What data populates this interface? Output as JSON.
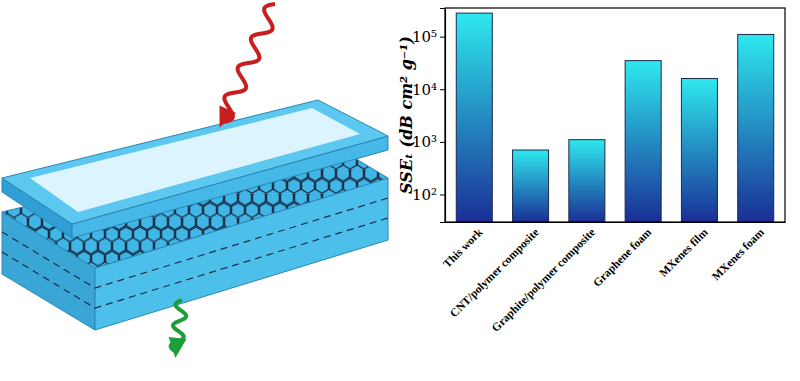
{
  "chart_data": {
    "type": "bar",
    "y_label": "SSEₜ (dB cm² g⁻¹)",
    "categories": [
      "This work",
      "CNT/polymer composite",
      "Graphite/polymer composite",
      "Graphene foam",
      "MXenes film",
      "MXenes foam"
    ],
    "values": [
      280000,
      700,
      1100,
      35000,
      16000,
      110000
    ],
    "color": "#2ee8ee",
    "log": "y",
    "ylim": [
      30,
      350000
    ],
    "yticks": [
      {
        "value": 100,
        "label": "10²"
      },
      {
        "value": 1000,
        "label": "10³"
      },
      {
        "value": 10000,
        "label": "10⁴"
      },
      {
        "value": 100000,
        "label": "10⁵"
      }
    ]
  }
}
